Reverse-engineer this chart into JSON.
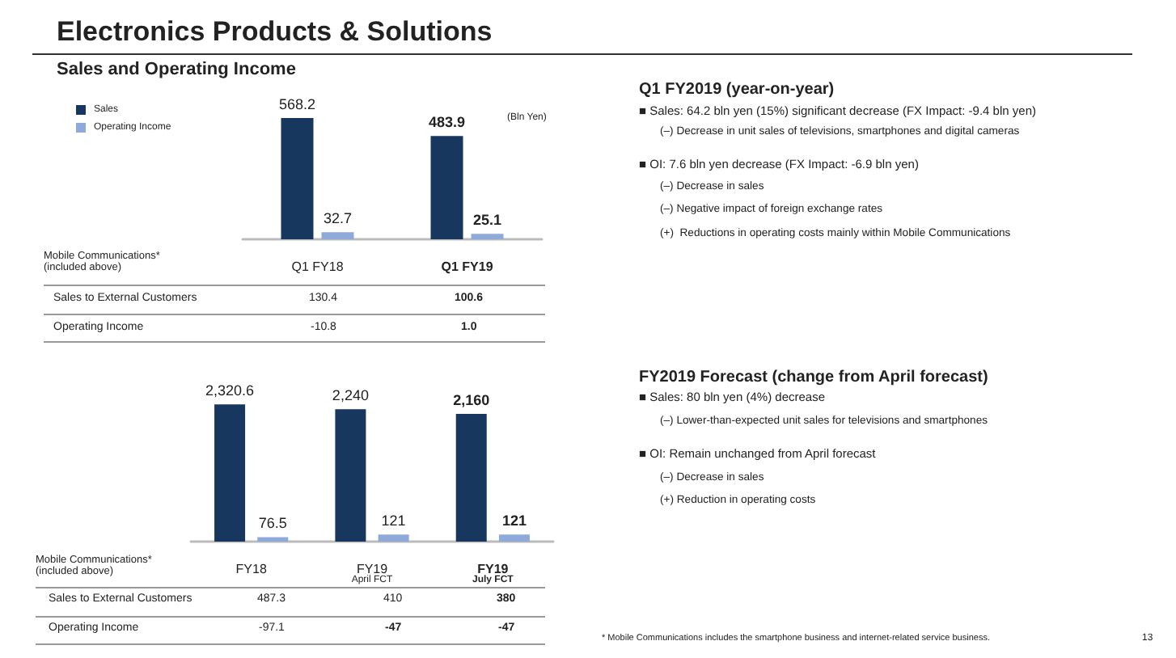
{
  "chart_data": [
    {
      "type": "bar",
      "title": "Electronics Products & Solutions",
      "subtitle": "Sales and Operating Income",
      "ylabel": "(Bln Yen)",
      "categories": [
        "Q1 FY18",
        "Q1 FY19"
      ],
      "legend": "top left",
      "series": [
        {
          "name": "Sales",
          "color": "#17375e",
          "values": [
            568.2,
            483.9
          ],
          "value_labels": [
            "568.2",
            "483.9"
          ]
        },
        {
          "name": "Operating Income",
          "color": "#8eaadb",
          "values": [
            32.7,
            25.1
          ],
          "value_labels": [
            "32.7",
            "25.1"
          ]
        }
      ],
      "annotations": [
        "Mobile Communications*\n(included above)",
        "Sales to External Customers",
        "130.4",
        "100.6",
        "Operating Income",
        "-10.8",
        "1.0",
        "Q1 FY2019 (year-on-year)",
        "■ Sales: 64.2 bln yen (15%) significant decrease (FX Impact: -9.4 bln yen)",
        "(–) Decrease in unit sales of televisions, smartphones and digital cameras",
        "■ OI: 7.6 bln yen decrease (FX Impact: -6.9 bln yen)",
        "(–) Decrease in sales",
        "(–) Negative impact of foreign exchange rates",
        "(+)  Reductions in operating costs mainly within Mobile Communications"
      ]
    },
    {
      "type": "bar",
      "categories": [
        "FY18",
        "FY19\nApril FCT",
        "FY19\nJuly FCT"
      ],
      "legend": false,
      "series": [
        {
          "color": "#17375e",
          "values": [
            2320.6,
            2240,
            2160
          ],
          "value_labels": [
            "2,320.6",
            "2,240",
            "2,160"
          ]
        },
        {
          "color": "#8eaadb",
          "values": [
            76.5,
            121,
            121
          ],
          "value_labels": [
            "76.5",
            "121",
            "121"
          ]
        }
      ],
      "annotations": [
        "Mobile Communications*\n(included above)",
        "Sales to External Customers",
        "487.3",
        "410",
        "380",
        "Operating Income",
        "-97.1",
        "-47",
        "-47",
        "FY2019 Forecast (change from April forecast)",
        "■ Sales: 80 bln yen (4%) decrease",
        "(–) Lower-than-expected unit sales for televisions and smartphones",
        "■ OI: Remain unchanged from April forecast",
        "(–) Decrease in sales",
        "(+) Reduction in operating costs",
        "* Mobile Communications includes the smartphone business and internet-related service business.",
        "13"
      ]
    }
  ]
}
